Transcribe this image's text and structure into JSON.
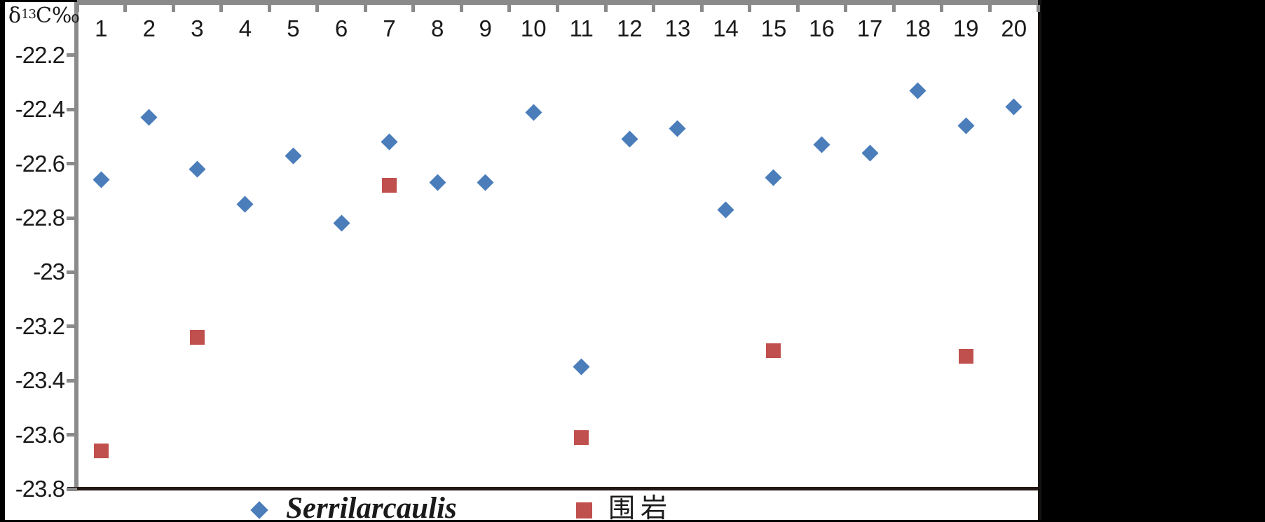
{
  "chart_data": {
    "type": "scatter",
    "title": "",
    "xlabel": "",
    "ylabel": "δ¹³C‰",
    "ylabel_parts": {
      "base": "δ",
      "superscript": "13",
      "rest": "C‰"
    },
    "categories": [
      "1",
      "2",
      "3",
      "4",
      "5",
      "6",
      "7",
      "8",
      "9",
      "10",
      "11",
      "12",
      "13",
      "14",
      "15",
      "16",
      "17",
      "18",
      "19",
      "20"
    ],
    "series": [
      {
        "name": "Serrilarcaulis",
        "marker": "diamond",
        "color": "#4a7dba",
        "values": [
          -22.66,
          -22.43,
          -22.62,
          -22.75,
          -22.57,
          -22.82,
          -22.52,
          -22.67,
          -22.67,
          -22.41,
          -23.35,
          -22.51,
          -22.47,
          -22.77,
          -22.65,
          -22.53,
          -22.56,
          -22.33,
          -22.46,
          -22.39
        ]
      },
      {
        "name": "围岩",
        "marker": "square",
        "color": "#c0504d",
        "values": [
          -23.66,
          null,
          -23.24,
          null,
          null,
          null,
          -22.68,
          null,
          null,
          null,
          -23.61,
          null,
          null,
          null,
          -23.29,
          null,
          null,
          null,
          -23.31,
          null
        ]
      }
    ],
    "y_axis": {
      "min": -23.8,
      "max": -22.0,
      "major_unit": 0.2,
      "tick_labels": [
        "-22.2",
        "-22.4",
        "-22.6",
        "-22.8",
        "-23",
        "-23.2",
        "-23.4",
        "-23.6",
        "-23.8"
      ],
      "tick_values": [
        -22.2,
        -22.4,
        -22.6,
        -22.8,
        -23.0,
        -23.2,
        -23.4,
        -23.6,
        -23.8
      ]
    },
    "x_axis": {
      "position": "top",
      "tick_style": "between-categories"
    },
    "grid": false,
    "legend_position": "bottom",
    "legend": [
      {
        "label": "Serrilarcaulis",
        "marker": "diamond",
        "color": "#4a7dba"
      },
      {
        "label": "围岩",
        "marker": "square",
        "color": "#c0504d"
      }
    ],
    "colors": {
      "axis_gray": "#8a8a8a",
      "bottom_border": "#231814",
      "text": "#1a1a1a",
      "plot_background": "#ffffff",
      "matte_background": "#000000"
    }
  }
}
